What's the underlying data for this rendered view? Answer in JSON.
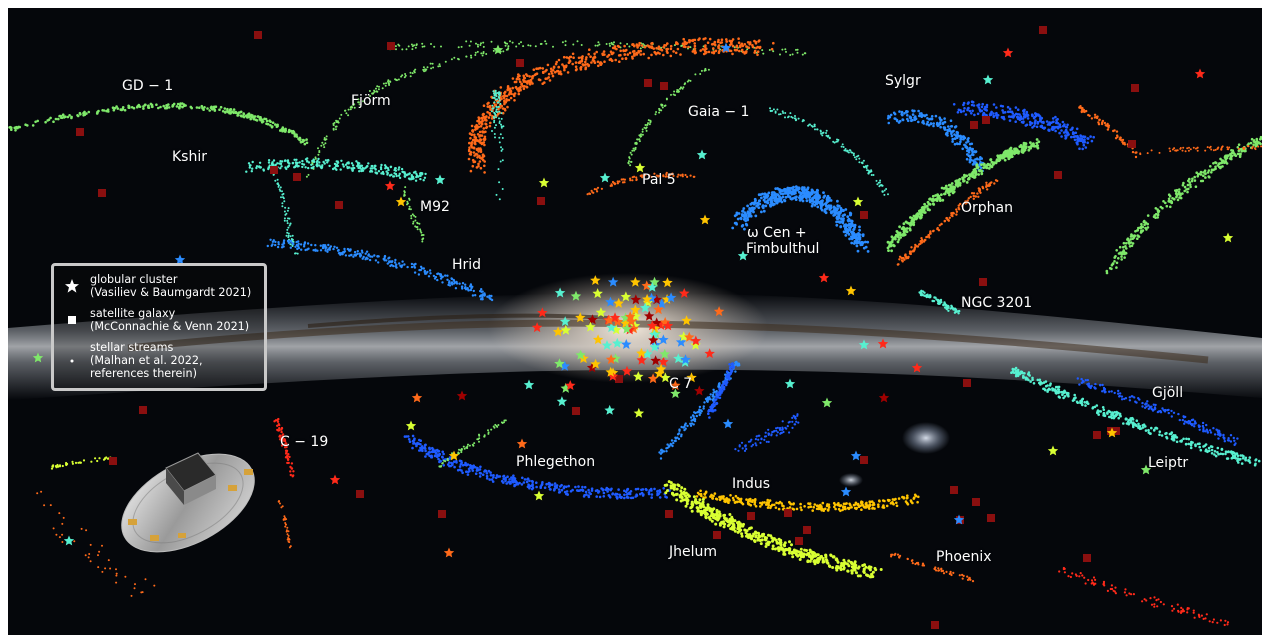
{
  "stream_labels": {
    "gd1": "GD − 1",
    "fjorm": "Fjörm",
    "kshir": "Kshir",
    "m92": "M92",
    "gaia1": "Gaia − 1",
    "sylgr": "Sylgr",
    "pal5": "Pal 5",
    "orphan": "Orphan",
    "omega_cen_1": "ω Cen +",
    "omega_cen_2": "Fimbulthul",
    "hrid": "Hrid",
    "ngc3201": "NGC 3201",
    "c7": "C 7",
    "gjoll": "Gjöll",
    "c19": "C − 19",
    "phlegethon": "Phlegethon",
    "indus": "Indus",
    "leiptr": "Leiptr",
    "jhelum": "Jhelum",
    "phoenix": "Phoenix"
  },
  "legend": {
    "globular_cluster": {
      "line1": "globular cluster",
      "line2": "(Vasiliev & Baumgardt 2021)",
      "icon": "star-icon"
    },
    "satellite_galaxy": {
      "line1": "satellite galaxy",
      "line2": "(McConnachie & Venn 2021)",
      "icon": "square-icon"
    },
    "stellar_streams": {
      "line1": "stellar streams",
      "line2": "(Malhan et al. 2022,",
      "line3": "references therein)",
      "icon": "dot-icon"
    }
  },
  "colors": {
    "sky_background": "#05070b",
    "milky_way_band": "#d8dde3",
    "dust_lane": "#3a2a1a",
    "satellite_marker": "#8a0f0f",
    "legend_border": "#c9c9c9",
    "stream_palette": [
      "#7fe86a",
      "#57f0d0",
      "#ff6a1a",
      "#2b8cff",
      "#d9ff33",
      "#ffc400",
      "#ff2a1a"
    ]
  },
  "icons": [
    "spacecraft-illustration",
    "magellanic-cloud-blob",
    "star-icon",
    "square-icon",
    "dot-icon"
  ]
}
